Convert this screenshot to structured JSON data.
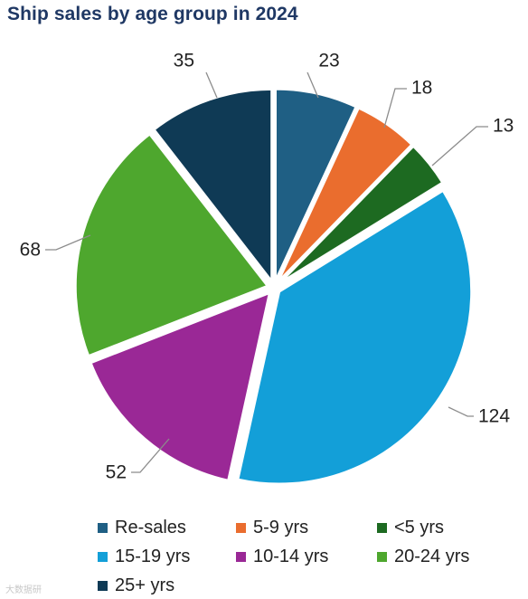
{
  "chart_data": {
    "type": "pie",
    "title": "Ship sales by age group in 2024",
    "categories": [
      "Re-sales",
      "5-9 yrs",
      "<5 yrs",
      "15-19 yrs",
      "10-14 yrs",
      "20-24 yrs",
      "25+ yrs"
    ],
    "values": [
      23,
      18,
      13,
      124,
      52,
      68,
      35
    ],
    "colors": [
      "#1f5f84",
      "#ea6d2e",
      "#1d6a21",
      "#139fd8",
      "#9a2896",
      "#4ea72e",
      "#0f3a55"
    ],
    "legend_position": "bottom",
    "start_angle": "12 o'clock",
    "direction": "clockwise"
  },
  "legend": {
    "items": [
      {
        "label": "Re-sales",
        "color": "#1f5f84"
      },
      {
        "label": "5-9 yrs",
        "color": "#ea6d2e"
      },
      {
        "label": "<5 yrs",
        "color": "#1d6a21"
      },
      {
        "label": "15-19 yrs",
        "color": "#139fd8"
      },
      {
        "label": "10-14 yrs",
        "color": "#9a2896"
      },
      {
        "label": "20-24 yrs",
        "color": "#4ea72e"
      },
      {
        "label": "25+ yrs",
        "color": "#0f3a55"
      }
    ]
  },
  "watermark": {
    "text": "大数据研"
  }
}
